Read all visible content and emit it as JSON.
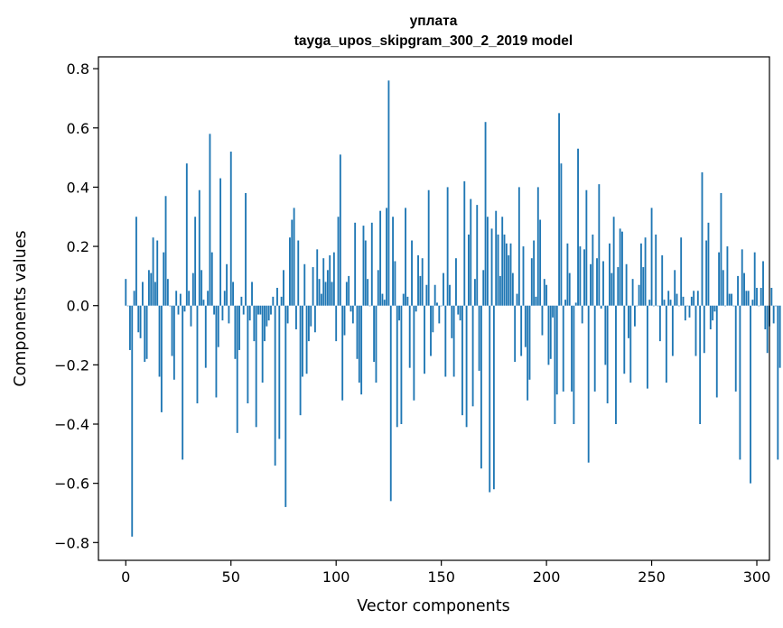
{
  "chart_data": {
    "type": "bar",
    "title": "уплата",
    "subtitle": "tayga_upos_skipgram_300_2_2019 model",
    "xlabel": "Vector components",
    "ylabel": "Components values",
    "xlim": [
      -13,
      306
    ],
    "ylim": [
      -0.86,
      0.84
    ],
    "xticks": [
      0,
      50,
      100,
      150,
      200,
      250,
      300
    ],
    "yticks": [
      -0.8,
      -0.6,
      -0.4,
      -0.2,
      0.0,
      0.2,
      0.4,
      0.6,
      0.8
    ],
    "ytick_labels": [
      "−0.8",
      "−0.6",
      "−0.4",
      "−0.2",
      "0.0",
      "0.2",
      "0.4",
      "0.6",
      "0.8"
    ],
    "xtick_labels": [
      "0",
      "50",
      "100",
      "150",
      "200",
      "250",
      "300"
    ],
    "bar_color": "#1f77b4",
    "values": [
      0.09,
      0.0,
      -0.15,
      -0.78,
      0.05,
      0.3,
      -0.09,
      -0.11,
      0.08,
      -0.19,
      -0.18,
      0.12,
      0.11,
      0.23,
      0.08,
      0.22,
      -0.24,
      -0.36,
      0.18,
      0.37,
      0.09,
      0.0,
      -0.17,
      -0.25,
      0.05,
      -0.03,
      0.04,
      -0.52,
      -0.02,
      0.48,
      0.05,
      -0.07,
      0.11,
      0.3,
      -0.33,
      0.39,
      0.12,
      0.02,
      -0.21,
      0.05,
      0.58,
      0.18,
      -0.03,
      -0.31,
      -0.14,
      0.43,
      -0.05,
      0.05,
      0.14,
      -0.06,
      0.52,
      0.08,
      -0.18,
      -0.43,
      -0.15,
      0.03,
      -0.03,
      0.38,
      -0.33,
      -0.05,
      0.08,
      -0.12,
      -0.41,
      -0.03,
      -0.03,
      -0.26,
      -0.12,
      -0.07,
      -0.05,
      -0.03,
      0.03,
      -0.54,
      0.06,
      -0.45,
      0.03,
      0.12,
      -0.68,
      -0.06,
      0.23,
      0.29,
      0.33,
      -0.08,
      0.22,
      -0.37,
      -0.24,
      0.14,
      -0.23,
      -0.12,
      -0.07,
      0.13,
      -0.09,
      0.19,
      0.09,
      0.04,
      0.16,
      0.08,
      0.12,
      0.17,
      0.08,
      0.18,
      -0.12,
      0.3,
      0.51,
      -0.32,
      -0.1,
      0.08,
      0.1,
      -0.02,
      -0.06,
      0.28,
      -0.18,
      -0.26,
      -0.3,
      0.27,
      0.22,
      0.09,
      0.0,
      0.28,
      -0.19,
      -0.26,
      0.12,
      0.32,
      0.04,
      0.02,
      0.33,
      0.76,
      -0.66,
      0.3,
      0.15,
      -0.41,
      -0.05,
      -0.4,
      0.04,
      0.33,
      0.03,
      -0.21,
      0.22,
      -0.32,
      -0.02,
      0.17,
      0.1,
      0.16,
      -0.23,
      0.07,
      0.39,
      -0.17,
      -0.09,
      0.07,
      0.01,
      -0.06,
      0.0,
      0.11,
      -0.24,
      0.4,
      0.07,
      -0.11,
      -0.24,
      0.16,
      -0.03,
      -0.05,
      -0.37,
      0.42,
      -0.41,
      0.24,
      0.36,
      -0.34,
      0.09,
      0.34,
      -0.22,
      -0.55,
      0.12,
      0.62,
      0.3,
      -0.63,
      0.26,
      -0.62,
      0.32,
      0.24,
      0.1,
      0.3,
      0.24,
      0.21,
      0.17,
      0.21,
      0.11,
      -0.19,
      0.04,
      0.4,
      -0.17,
      0.2,
      -0.14,
      -0.32,
      -0.25,
      0.16,
      0.22,
      0.03,
      0.4,
      0.29,
      -0.1,
      0.09,
      0.07,
      -0.2,
      -0.18,
      -0.04,
      -0.4,
      -0.3,
      0.65,
      0.48,
      -0.29,
      0.02,
      0.21,
      0.11,
      -0.29,
      -0.4,
      0.01,
      0.53,
      0.2,
      -0.06,
      0.19,
      0.39,
      -0.53,
      0.14,
      0.24,
      -0.29,
      0.16,
      0.41,
      -0.01,
      0.15,
      -0.2,
      -0.33,
      0.21,
      0.11,
      0.3,
      -0.4,
      0.13,
      0.26,
      0.25,
      -0.23,
      0.14,
      -0.11,
      -0.26,
      0.09,
      -0.07,
      0.0,
      0.07,
      0.21,
      0.13,
      0.23,
      -0.28,
      0.02,
      0.33,
      0.0,
      0.24,
      0.0,
      -0.12,
      0.17,
      0.02,
      -0.26,
      0.05,
      0.02,
      -0.17,
      0.12,
      0.04,
      0.0,
      0.23,
      0.03,
      -0.05,
      0.0,
      -0.04,
      0.03,
      0.05,
      -0.17,
      0.05,
      -0.4,
      0.45,
      -0.16,
      0.22,
      0.28,
      -0.08,
      -0.05,
      -0.02,
      -0.31,
      0.18,
      0.38,
      0.12,
      0.0,
      0.2,
      0.04,
      0.04,
      0.0,
      -0.29,
      0.1,
      -0.52,
      0.19,
      0.11,
      0.05,
      0.05,
      -0.6,
      0.02,
      0.18,
      0.06,
      0.0,
      0.06,
      0.15,
      -0.08,
      -0.16,
      -0.07,
      0.06,
      -0.06,
      0.0,
      -0.52,
      -0.21
    ]
  }
}
